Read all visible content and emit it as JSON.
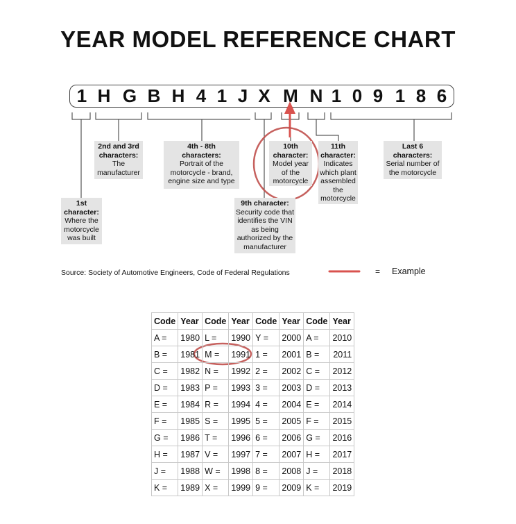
{
  "title": "YEAR MODEL REFERENCE CHART",
  "vin": [
    "1",
    "H",
    "G",
    "B",
    "H",
    "4",
    "1",
    "J",
    "X",
    "M",
    "N",
    "1",
    "0",
    "9",
    "1",
    "8",
    "6"
  ],
  "labels": {
    "first": {
      "head": "1st character:",
      "body": "Where the motorcycle was built"
    },
    "second_third": {
      "head": "2nd and 3rd characters:",
      "body": "The manufacturer"
    },
    "fourth_eighth": {
      "head": "4th - 8th characters:",
      "body": "Portrait of the motorcycle - brand, engine size and type"
    },
    "ninth": {
      "head": "9th character:",
      "body": "Security code that identifies the VIN as being authorized by the manufacturer"
    },
    "tenth": {
      "head": "10th character:",
      "body": "Model year of the motorcycle"
    },
    "eleventh": {
      "head": "11th character:",
      "body": "Indicates which plant assembled the motorcycle"
    },
    "last6": {
      "head": "Last 6 characters:",
      "body": "Serial number of the motorcycle"
    }
  },
  "source": "Source:  Society of Automotive Engineers, Code of Federal Regulations",
  "legend": {
    "equals": "=",
    "label": "Example",
    "color": "#d9534f"
  },
  "highlight_color": "#c0504d",
  "table": {
    "headers": [
      "Code",
      "Year",
      "Code",
      "Year",
      "Code",
      "Year",
      "Code",
      "Year"
    ],
    "rows": [
      [
        "A =",
        "1980",
        "L =",
        "1990",
        "Y =",
        "2000",
        "A =",
        "2010"
      ],
      [
        "B =",
        "1981",
        "M =",
        "1991",
        "1 =",
        "2001",
        "B =",
        "2011"
      ],
      [
        "C =",
        "1982",
        "N =",
        "1992",
        "2 =",
        "2002",
        "C =",
        "2012"
      ],
      [
        "D =",
        "1983",
        "P =",
        "1993",
        "3 =",
        "2003",
        "D =",
        "2013"
      ],
      [
        "E =",
        "1984",
        "R =",
        "1994",
        "4 =",
        "2004",
        "E =",
        "2014"
      ],
      [
        "F =",
        "1985",
        "S =",
        "1995",
        "5 =",
        "2005",
        "F =",
        "2015"
      ],
      [
        "G =",
        "1986",
        "T =",
        "1996",
        "6 =",
        "2006",
        "G =",
        "2016"
      ],
      [
        "H =",
        "1987",
        "V =",
        "1997",
        "7 =",
        "2007",
        "H =",
        "2017"
      ],
      [
        "J =",
        "1988",
        "W =",
        "1998",
        "8 =",
        "2008",
        "J =",
        "2018"
      ],
      [
        "K =",
        "1989",
        "X =",
        "1999",
        "9 =",
        "2009",
        "K =",
        "2019"
      ]
    ]
  }
}
